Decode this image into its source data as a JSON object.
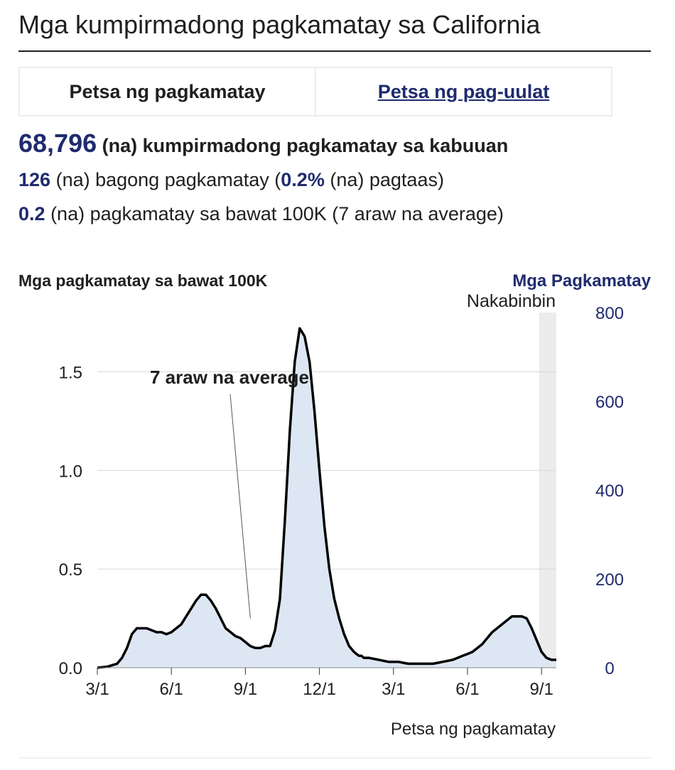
{
  "page": {
    "title": "Mga kumpirmadong pagkamatay sa California"
  },
  "tabs": [
    {
      "label": "Petsa ng pagkamatay",
      "active": true
    },
    {
      "label": "Petsa ng pag-uulat",
      "active": false
    }
  ],
  "stats": {
    "total_value": "68,796",
    "total_label": "(na) kumpirmadong pagkamatay sa kabuuan",
    "new_value": "126",
    "new_label_a": "(na) bagong pagkamatay (",
    "new_pct": "0.2%",
    "new_label_b": "(na) pagtaas)",
    "rate_value": "0.2",
    "rate_label": "(na) pagkamatay sa bawat 100K (7 araw na average)"
  },
  "colors": {
    "accent": "#1f2b6e",
    "area_fill": "#dde7f3",
    "line": "#000000",
    "pending_band": "#ececec",
    "grid": "#d8d8d8"
  },
  "chart_data": {
    "type": "area",
    "title": "Mga pagkamatay sa bawat 100K",
    "right_axis_title": "Mga Pagkamatay",
    "pending_label": "Nakabinbin",
    "annotation": "7 araw na average",
    "xlabel": "Petsa ng pagkamatay",
    "ylim": [
      0,
      1.75
    ],
    "y_ticks": [
      0.0,
      0.5,
      1.0,
      1.5
    ],
    "y_tick_labels": [
      "0.0",
      "0.5",
      "1.0",
      "1.5"
    ],
    "right_ticks": [
      0,
      200,
      400,
      600,
      800
    ],
    "right_ylim": [
      0,
      800
    ],
    "x_ticks": [
      0,
      3,
      6,
      9,
      12,
      15,
      18,
      21
    ],
    "x_tick_labels": [
      "3/1",
      "6/1",
      "9/1",
      "12/1",
      "3/1",
      "6/1",
      "9/1"
    ],
    "x_tick_positions": [
      0,
      3,
      6,
      9,
      12,
      15,
      18
    ],
    "xlim": [
      0,
      18.6
    ],
    "pending_start": 17.9,
    "annotation_point": [
      6.2,
      0.25
    ],
    "series": [
      {
        "name": "7 araw na average",
        "x": [
          0,
          0.4,
          0.8,
          1.0,
          1.2,
          1.4,
          1.6,
          1.8,
          2.0,
          2.2,
          2.4,
          2.6,
          2.8,
          3.0,
          3.2,
          3.4,
          3.6,
          3.8,
          4.0,
          4.2,
          4.4,
          4.6,
          4.8,
          5.0,
          5.2,
          5.4,
          5.6,
          5.8,
          6.0,
          6.2,
          6.4,
          6.6,
          6.8,
          7.0,
          7.2,
          7.4,
          7.6,
          7.8,
          8.0,
          8.2,
          8.4,
          8.6,
          8.8,
          9.0,
          9.2,
          9.4,
          9.6,
          9.8,
          10.0,
          10.2,
          10.4,
          10.5,
          10.6,
          10.7,
          10.8,
          10.9,
          11.0,
          11.2,
          11.4,
          11.6,
          11.8,
          12.0,
          12.2,
          12.4,
          12.6,
          12.8,
          13.0,
          13.2,
          13.4,
          13.6,
          13.8,
          14.0,
          14.2,
          14.4,
          14.6,
          14.8,
          15.0,
          15.2,
          15.4,
          15.6,
          15.8,
          16.0,
          16.2,
          16.4,
          16.6,
          16.8,
          17.0,
          17.2,
          17.4,
          17.6,
          17.8,
          18.0,
          18.2,
          18.4,
          18.6
        ],
        "values": [
          0.0,
          0.005,
          0.02,
          0.05,
          0.1,
          0.17,
          0.2,
          0.2,
          0.2,
          0.19,
          0.18,
          0.18,
          0.17,
          0.18,
          0.2,
          0.22,
          0.26,
          0.3,
          0.34,
          0.37,
          0.37,
          0.34,
          0.3,
          0.25,
          0.2,
          0.18,
          0.16,
          0.15,
          0.13,
          0.11,
          0.1,
          0.1,
          0.11,
          0.11,
          0.19,
          0.35,
          0.75,
          1.2,
          1.55,
          1.72,
          1.68,
          1.55,
          1.3,
          1.0,
          0.72,
          0.5,
          0.35,
          0.25,
          0.17,
          0.11,
          0.08,
          0.07,
          0.06,
          0.06,
          0.05,
          0.05,
          0.05,
          0.045,
          0.04,
          0.035,
          0.03,
          0.03,
          0.03,
          0.025,
          0.02,
          0.02,
          0.02,
          0.02,
          0.02,
          0.02,
          0.025,
          0.03,
          0.035,
          0.04,
          0.05,
          0.06,
          0.07,
          0.08,
          0.1,
          0.12,
          0.15,
          0.18,
          0.2,
          0.22,
          0.24,
          0.26,
          0.26,
          0.26,
          0.25,
          0.2,
          0.14,
          0.08,
          0.05,
          0.04,
          0.04
        ]
      }
    ]
  }
}
